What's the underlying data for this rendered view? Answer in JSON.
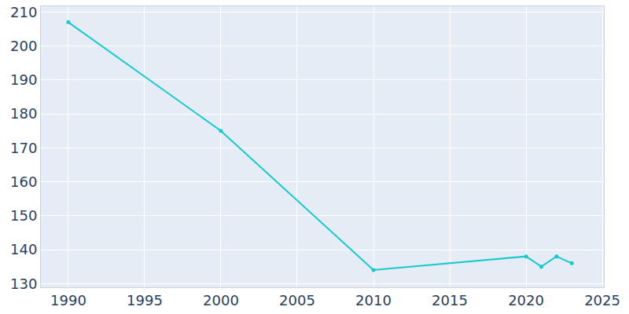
{
  "chart_data": {
    "type": "line",
    "x": [
      1990,
      2000,
      2010,
      2020,
      2021,
      2022,
      2023
    ],
    "values": [
      207,
      175,
      134,
      138,
      135,
      138,
      136
    ],
    "color": "#17c9cf",
    "marker": "circle",
    "xlim": [
      1988.2,
      2025.1
    ],
    "xticks": [
      1990,
      1995,
      2000,
      2005,
      2010,
      2015,
      2020,
      2025
    ],
    "ylim": [
      128.9,
      211.7
    ],
    "yticks": [
      130,
      140,
      150,
      160,
      170,
      180,
      190,
      200,
      210
    ],
    "grid": true
  }
}
